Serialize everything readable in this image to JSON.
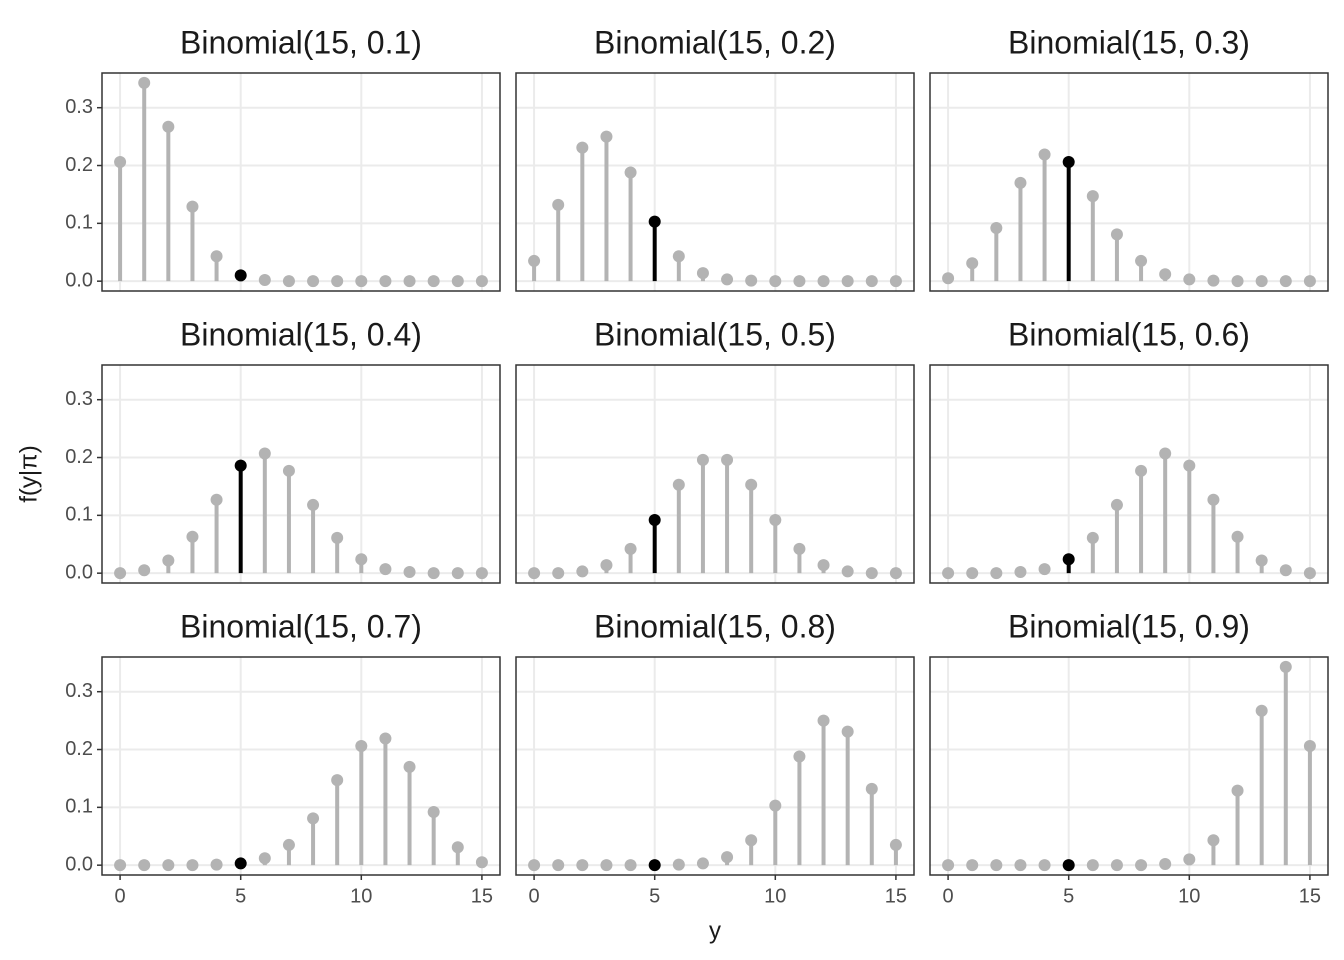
{
  "axis_labels": {
    "x": "y",
    "y": "f(y|π)"
  },
  "chart_data": [
    {
      "type": "lollipop",
      "title": "Binomial(15, 0.1)",
      "x": [
        0,
        1,
        2,
        3,
        4,
        5,
        6,
        7,
        8,
        9,
        10,
        11,
        12,
        13,
        14,
        15
      ],
      "values": [
        0.206,
        0.343,
        0.267,
        0.129,
        0.043,
        0.01,
        0.002,
        0,
        0,
        0,
        0,
        0,
        0,
        0,
        0,
        0
      ],
      "color": "#b3b3b3",
      "highlight": 5,
      "highlight_color": "#000000",
      "xlim": [
        -0.75,
        15.75
      ],
      "ylim": [
        -0.017,
        0.36
      ],
      "xticks": [
        0,
        5,
        10,
        15
      ],
      "yticks": [
        {
          "value": 0,
          "label": "0.0"
        },
        0.1,
        0.2,
        0.3
      ],
      "grid": true
    },
    {
      "type": "lollipop",
      "title": "Binomial(15, 0.2)",
      "x": [
        0,
        1,
        2,
        3,
        4,
        5,
        6,
        7,
        8,
        9,
        10,
        11,
        12,
        13,
        14,
        15
      ],
      "values": [
        0.035,
        0.132,
        0.231,
        0.25,
        0.188,
        0.103,
        0.043,
        0.014,
        0.003,
        0.001,
        0,
        0,
        0,
        0,
        0,
        0
      ],
      "color": "#b3b3b3",
      "highlight": 5,
      "highlight_color": "#000000",
      "xlim": [
        -0.75,
        15.75
      ],
      "ylim": [
        -0.017,
        0.36
      ],
      "xticks": [
        0,
        5,
        10,
        15
      ],
      "yticks": [
        {
          "value": 0,
          "label": "0.0"
        },
        0.1,
        0.2,
        0.3
      ],
      "grid": true
    },
    {
      "type": "lollipop",
      "title": "Binomial(15, 0.3)",
      "x": [
        0,
        1,
        2,
        3,
        4,
        5,
        6,
        7,
        8,
        9,
        10,
        11,
        12,
        13,
        14,
        15
      ],
      "values": [
        0.005,
        0.031,
        0.092,
        0.17,
        0.219,
        0.206,
        0.147,
        0.081,
        0.035,
        0.012,
        0.003,
        0.001,
        0,
        0,
        0,
        0
      ],
      "color": "#b3b3b3",
      "highlight": 5,
      "highlight_color": "#000000",
      "xlim": [
        -0.75,
        15.75
      ],
      "ylim": [
        -0.017,
        0.36
      ],
      "xticks": [
        0,
        5,
        10,
        15
      ],
      "yticks": [
        {
          "value": 0,
          "label": "0.0"
        },
        0.1,
        0.2,
        0.3
      ],
      "grid": true
    },
    {
      "type": "lollipop",
      "title": "Binomial(15, 0.4)",
      "x": [
        0,
        1,
        2,
        3,
        4,
        5,
        6,
        7,
        8,
        9,
        10,
        11,
        12,
        13,
        14,
        15
      ],
      "values": [
        0,
        0.005,
        0.022,
        0.063,
        0.127,
        0.186,
        0.207,
        0.177,
        0.118,
        0.061,
        0.024,
        0.007,
        0.002,
        0,
        0,
        0
      ],
      "color": "#b3b3b3",
      "highlight": 5,
      "highlight_color": "#000000",
      "xlim": [
        -0.75,
        15.75
      ],
      "ylim": [
        -0.017,
        0.36
      ],
      "xticks": [
        0,
        5,
        10,
        15
      ],
      "yticks": [
        {
          "value": 0,
          "label": "0.0"
        },
        0.1,
        0.2,
        0.3
      ],
      "grid": true
    },
    {
      "type": "lollipop",
      "title": "Binomial(15, 0.5)",
      "x": [
        0,
        1,
        2,
        3,
        4,
        5,
        6,
        7,
        8,
        9,
        10,
        11,
        12,
        13,
        14,
        15
      ],
      "values": [
        0,
        0,
        0.003,
        0.014,
        0.042,
        0.092,
        0.153,
        0.196,
        0.196,
        0.153,
        0.092,
        0.042,
        0.014,
        0.003,
        0,
        0
      ],
      "color": "#b3b3b3",
      "highlight": 5,
      "highlight_color": "#000000",
      "xlim": [
        -0.75,
        15.75
      ],
      "ylim": [
        -0.017,
        0.36
      ],
      "xticks": [
        0,
        5,
        10,
        15
      ],
      "yticks": [
        {
          "value": 0,
          "label": "0.0"
        },
        0.1,
        0.2,
        0.3
      ],
      "grid": true
    },
    {
      "type": "lollipop",
      "title": "Binomial(15, 0.6)",
      "x": [
        0,
        1,
        2,
        3,
        4,
        5,
        6,
        7,
        8,
        9,
        10,
        11,
        12,
        13,
        14,
        15
      ],
      "values": [
        0,
        0,
        0,
        0.002,
        0.007,
        0.024,
        0.061,
        0.118,
        0.177,
        0.207,
        0.186,
        0.127,
        0.063,
        0.022,
        0.005,
        0
      ],
      "color": "#b3b3b3",
      "highlight": 5,
      "highlight_color": "#000000",
      "xlim": [
        -0.75,
        15.75
      ],
      "ylim": [
        -0.017,
        0.36
      ],
      "xticks": [
        0,
        5,
        10,
        15
      ],
      "yticks": [
        {
          "value": 0,
          "label": "0.0"
        },
        0.1,
        0.2,
        0.3
      ],
      "grid": true
    },
    {
      "type": "lollipop",
      "title": "Binomial(15, 0.7)",
      "x": [
        0,
        1,
        2,
        3,
        4,
        5,
        6,
        7,
        8,
        9,
        10,
        11,
        12,
        13,
        14,
        15
      ],
      "values": [
        0,
        0,
        0,
        0,
        0.001,
        0.003,
        0.012,
        0.035,
        0.081,
        0.147,
        0.206,
        0.219,
        0.17,
        0.092,
        0.031,
        0.005
      ],
      "color": "#b3b3b3",
      "highlight": 5,
      "highlight_color": "#000000",
      "xlim": [
        -0.75,
        15.75
      ],
      "ylim": [
        -0.017,
        0.36
      ],
      "xticks": [
        0,
        5,
        10,
        15
      ],
      "yticks": [
        {
          "value": 0,
          "label": "0.0"
        },
        0.1,
        0.2,
        0.3
      ],
      "grid": true
    },
    {
      "type": "lollipop",
      "title": "Binomial(15, 0.8)",
      "x": [
        0,
        1,
        2,
        3,
        4,
        5,
        6,
        7,
        8,
        9,
        10,
        11,
        12,
        13,
        14,
        15
      ],
      "values": [
        0,
        0,
        0,
        0,
        0,
        0,
        0.001,
        0.003,
        0.014,
        0.043,
        0.103,
        0.188,
        0.25,
        0.231,
        0.132,
        0.035
      ],
      "color": "#b3b3b3",
      "highlight": 5,
      "highlight_color": "#000000",
      "xlim": [
        -0.75,
        15.75
      ],
      "ylim": [
        -0.017,
        0.36
      ],
      "xticks": [
        0,
        5,
        10,
        15
      ],
      "yticks": [
        {
          "value": 0,
          "label": "0.0"
        },
        0.1,
        0.2,
        0.3
      ],
      "grid": true
    },
    {
      "type": "lollipop",
      "title": "Binomial(15, 0.9)",
      "x": [
        0,
        1,
        2,
        3,
        4,
        5,
        6,
        7,
        8,
        9,
        10,
        11,
        12,
        13,
        14,
        15
      ],
      "values": [
        0,
        0,
        0,
        0,
        0,
        0,
        0,
        0,
        0,
        0.002,
        0.01,
        0.043,
        0.129,
        0.267,
        0.343,
        0.206
      ],
      "color": "#b3b3b3",
      "highlight": 5,
      "highlight_color": "#000000",
      "xlim": [
        -0.75,
        15.75
      ],
      "ylim": [
        -0.017,
        0.36
      ],
      "xticks": [
        0,
        5,
        10,
        15
      ],
      "yticks": [
        {
          "value": 0,
          "label": "0.0"
        },
        0.1,
        0.2,
        0.3
      ],
      "grid": true
    }
  ]
}
